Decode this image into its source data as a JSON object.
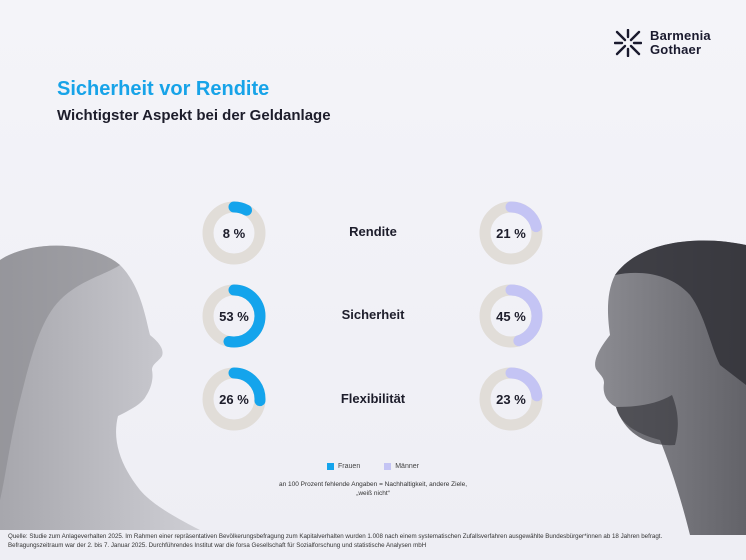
{
  "header": {
    "title": "Sicherheit vor Rendite",
    "subtitle": "Wichtigster Aspekt bei der Geldanlage"
  },
  "logo": {
    "line1": "Barmenia",
    "line2": "Gothaer"
  },
  "colors": {
    "women": "#14a4ec",
    "men": "#c4c4f4",
    "track": "#e1ddd8",
    "title": "#17a3e8"
  },
  "chart_data": {
    "type": "pie",
    "title": "Sicherheit vor Rendite",
    "subtitle": "Wichtigster Aspekt bei der Geldanlage",
    "categories": [
      "Rendite",
      "Sicherheit",
      "Flexibilität"
    ],
    "series": [
      {
        "name": "Frauen",
        "values": [
          8,
          53,
          26
        ],
        "labels": [
          "8 %",
          "53 %",
          "26 %"
        ]
      },
      {
        "name": "Männer",
        "values": [
          21,
          45,
          23
        ],
        "labels": [
          "21 %",
          "45 %",
          "23 %"
        ]
      }
    ],
    "unit": "%"
  },
  "legend": {
    "women": "Frauen",
    "men": "Männer"
  },
  "note": "an 100 Prozent fehlende Angaben = Nachhaltigkeit, andere Ziele, „weiß nicht“",
  "source": {
    "line1": "Quelle: Studie zum Anlageverhalten 2025. Im Rahmen einer repräsentativen Bevölkerungsbefragung zum Kapitalverhalten wurden 1.008 nach einem systematischen Zufallsverfahren ausgewählte Bundesbürger*innen ab 18 Jahren befragt.",
    "line2": "Befragungszeitraum war der 2. bis 7. Januar 2025. Durchführendes Institut war die forsa Gesellschaft für Sozialforschung und statistische Analysen mbH"
  }
}
